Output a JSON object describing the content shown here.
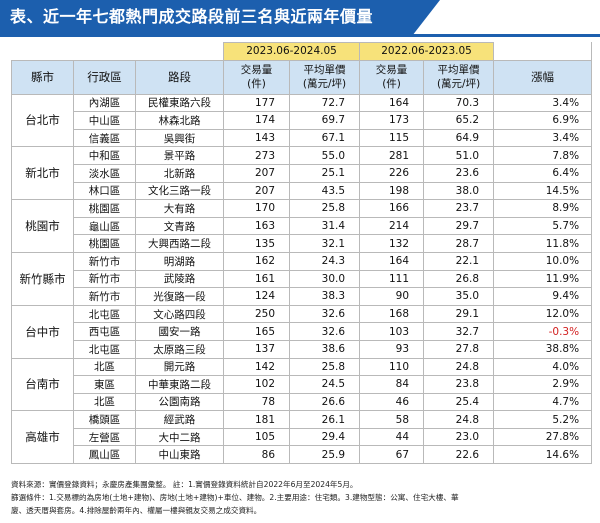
{
  "title": "表、近一年七都熱門成交路段前三名與近兩年價量",
  "header": {
    "city": "縣市",
    "district": "行政區",
    "road": "路段",
    "period_recent": "2023.06-2024.05",
    "period_prior": "2022.06-2023.05",
    "volume": "交易量\n(件)",
    "avg_price": "平均單價\n(萬元/坪)",
    "change": "漲幅"
  },
  "rows": [
    {
      "city": "台北市",
      "span": 3,
      "district": "內湖區",
      "road": "民權東路六段",
      "vol_recent": "177",
      "price_recent": "72.7",
      "vol_prior": "164",
      "price_prior": "70.3",
      "change": "3.4%"
    },
    {
      "district": "中山區",
      "road": "林森北路",
      "vol_recent": "174",
      "price_recent": "69.7",
      "vol_prior": "173",
      "price_prior": "65.2",
      "change": "6.9%"
    },
    {
      "district": "信義區",
      "road": "吳興街",
      "vol_recent": "143",
      "price_recent": "67.1",
      "vol_prior": "115",
      "price_prior": "64.9",
      "change": "3.4%"
    },
    {
      "city": "新北市",
      "span": 3,
      "district": "中和區",
      "road": "景平路",
      "vol_recent": "273",
      "price_recent": "55.0",
      "vol_prior": "281",
      "price_prior": "51.0",
      "change": "7.8%"
    },
    {
      "district": "淡水區",
      "road": "北新路",
      "vol_recent": "207",
      "price_recent": "25.1",
      "vol_prior": "226",
      "price_prior": "23.6",
      "change": "6.4%"
    },
    {
      "district": "林口區",
      "road": "文化三路一段",
      "vol_recent": "207",
      "price_recent": "43.5",
      "vol_prior": "198",
      "price_prior": "38.0",
      "change": "14.5%"
    },
    {
      "city": "桃園市",
      "span": 3,
      "district": "桃園區",
      "road": "大有路",
      "vol_recent": "170",
      "price_recent": "25.8",
      "vol_prior": "166",
      "price_prior": "23.7",
      "change": "8.9%"
    },
    {
      "district": "龜山區",
      "road": "文青路",
      "vol_recent": "163",
      "price_recent": "31.4",
      "vol_prior": "214",
      "price_prior": "29.7",
      "change": "5.7%"
    },
    {
      "district": "桃園區",
      "road": "大興西路二段",
      "vol_recent": "135",
      "price_recent": "32.1",
      "vol_prior": "132",
      "price_prior": "28.7",
      "change": "11.8%"
    },
    {
      "city": "新竹縣市",
      "span": 3,
      "district": "新竹市",
      "road": "明湖路",
      "vol_recent": "162",
      "price_recent": "24.3",
      "vol_prior": "164",
      "price_prior": "22.1",
      "change": "10.0%"
    },
    {
      "district": "新竹市",
      "road": "武陵路",
      "vol_recent": "161",
      "price_recent": "30.0",
      "vol_prior": "111",
      "price_prior": "26.8",
      "change": "11.9%"
    },
    {
      "district": "新竹市",
      "road": "光復路一段",
      "vol_recent": "124",
      "price_recent": "38.3",
      "vol_prior": "90",
      "price_prior": "35.0",
      "change": "9.4%"
    },
    {
      "city": "台中市",
      "span": 3,
      "district": "北屯區",
      "road": "文心路四段",
      "vol_recent": "250",
      "price_recent": "32.6",
      "vol_prior": "168",
      "price_prior": "29.1",
      "change": "12.0%"
    },
    {
      "district": "西屯區",
      "road": "國安一路",
      "vol_recent": "165",
      "price_recent": "32.6",
      "vol_prior": "103",
      "price_prior": "32.7",
      "change": "-0.3%",
      "negative": true
    },
    {
      "district": "北屯區",
      "road": "太原路三段",
      "vol_recent": "137",
      "price_recent": "38.6",
      "vol_prior": "93",
      "price_prior": "27.8",
      "change": "38.8%"
    },
    {
      "city": "台南市",
      "span": 3,
      "district": "北區",
      "road": "開元路",
      "vol_recent": "142",
      "price_recent": "25.8",
      "vol_prior": "110",
      "price_prior": "24.8",
      "change": "4.0%"
    },
    {
      "district": "東區",
      "road": "中華東路二段",
      "vol_recent": "102",
      "price_recent": "24.5",
      "vol_prior": "84",
      "price_prior": "23.8",
      "change": "2.9%"
    },
    {
      "district": "北區",
      "road": "公園南路",
      "vol_recent": "78",
      "price_recent": "26.6",
      "vol_prior": "46",
      "price_prior": "25.4",
      "change": "4.7%"
    },
    {
      "city": "高雄市",
      "span": 3,
      "district": "橋頭區",
      "road": "經武路",
      "vol_recent": "181",
      "price_recent": "26.1",
      "vol_prior": "58",
      "price_prior": "24.8",
      "change": "5.2%"
    },
    {
      "district": "左營區",
      "road": "大中二路",
      "vol_recent": "105",
      "price_recent": "29.4",
      "vol_prior": "44",
      "price_prior": "23.0",
      "change": "27.8%"
    },
    {
      "district": "鳳山區",
      "road": "中山東路",
      "vol_recent": "86",
      "price_recent": "25.9",
      "vol_prior": "67",
      "price_prior": "22.6",
      "change": "14.6%"
    }
  ],
  "notes": {
    "line1": "資料來源：實價登錄資料；永慶房產集團彙整。 註：1.實價登錄資料統計自2022年6月至2024年5月。",
    "line2": "篩選條件：1.交易標的為房地(土地+建物)、房地(土地+建物)+車位、建物。2.主要用途：住宅類。3.建物型態：公寓、住宅大樓、華",
    "line3": "廈、透天厝與套房。4.排除屋齡兩年內、權屬一樓與親友交易之成交資料。"
  },
  "colors": {
    "title_bg": "#1c5fae",
    "header_bg": "#cfe2f3",
    "period_bg": "#f7e27a",
    "negative": "#d21f1f"
  }
}
